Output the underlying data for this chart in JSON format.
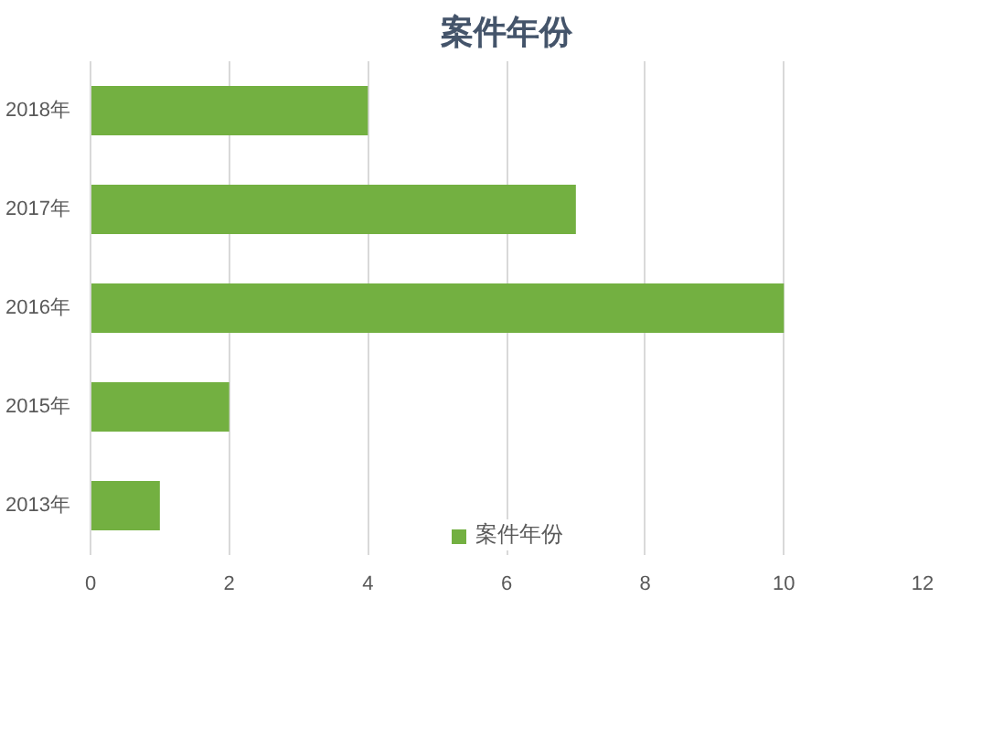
{
  "chart_data": {
    "type": "bar",
    "orientation": "horizontal",
    "title": "案件年份",
    "categories": [
      "2018年",
      "2017年",
      "2016年",
      "2015年",
      "2013年"
    ],
    "series": [
      {
        "name": "案件年份",
        "color": "#73b041",
        "values": [
          4,
          7,
          10,
          2,
          1
        ]
      }
    ],
    "xlim": [
      0,
      12
    ],
    "xticks": [
      0,
      2,
      4,
      6,
      8,
      10,
      12
    ],
    "grid": "x",
    "legend": "bottom"
  }
}
